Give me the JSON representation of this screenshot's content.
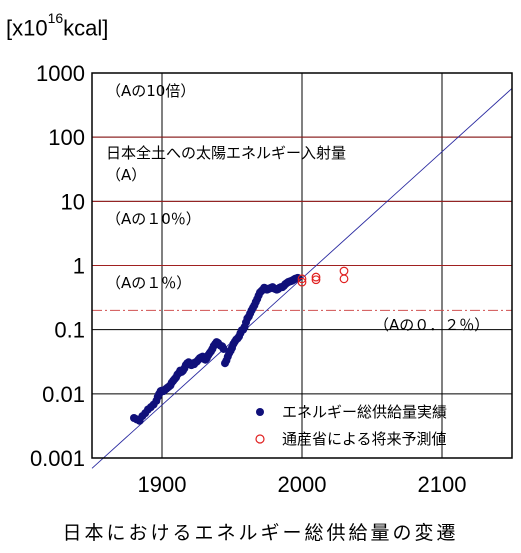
{
  "chart_data": {
    "type": "scatter",
    "unit_label_prefix": "[x10",
    "unit_label_exp": "16",
    "unit_label_suffix": "kcal]",
    "caption": "日本におけるエネルギー総供給量の変遷",
    "xlim": [
      1850,
      2150
    ],
    "ylim": [
      0.001,
      1000
    ],
    "y_scale": "log",
    "x_ticks": [
      "1900",
      "2000",
      "2100"
    ],
    "y_ticks": [
      "0.001",
      "0.01",
      "0.1",
      "1",
      "10",
      "100",
      "1000"
    ],
    "grid": true,
    "legend_position": "bottom-right",
    "annotations": {
      "a10x": "（Aの10倍）",
      "a_line1": "日本全土への太陽エネルギー入射量",
      "a_line2": "（A）",
      "a10pct": "（Aの１0％）",
      "a1pct": "（Aの１％）",
      "a02pct": "（Aの０．２％）"
    },
    "reference_lines": [
      {
        "y": 1000,
        "style": "dashed"
      },
      {
        "y": 100,
        "style": "solid"
      },
      {
        "y": 10,
        "style": "solid"
      },
      {
        "y": 1,
        "style": "solid"
      },
      {
        "y": 0.2,
        "style": "dashdot"
      }
    ],
    "trend_line": {
      "x": [
        1850,
        2150
      ],
      "y": [
        0.00069,
        575
      ]
    },
    "series": [
      {
        "name": "エネルギー総供給量実績",
        "marker": "filled-circle",
        "color": "#10107a",
        "points": [
          [
            1880,
            0.0042
          ],
          [
            1882,
            0.004
          ],
          [
            1884,
            0.0038
          ],
          [
            1886,
            0.0045
          ],
          [
            1888,
            0.005
          ],
          [
            1890,
            0.0057
          ],
          [
            1892,
            0.0062
          ],
          [
            1894,
            0.0068
          ],
          [
            1896,
            0.0078
          ],
          [
            1897,
            0.009
          ],
          [
            1898,
            0.01
          ],
          [
            1899,
            0.011
          ],
          [
            1900,
            0.0112
          ],
          [
            1901,
            0.011
          ],
          [
            1902,
            0.0115
          ],
          [
            1903,
            0.012
          ],
          [
            1904,
            0.0125
          ],
          [
            1905,
            0.013
          ],
          [
            1906,
            0.0135
          ],
          [
            1907,
            0.015
          ],
          [
            1908,
            0.016
          ],
          [
            1909,
            0.017
          ],
          [
            1910,
            0.018
          ],
          [
            1911,
            0.02
          ],
          [
            1912,
            0.021
          ],
          [
            1913,
            0.023
          ],
          [
            1914,
            0.022
          ],
          [
            1915,
            0.023
          ],
          [
            1916,
            0.025
          ],
          [
            1917,
            0.028
          ],
          [
            1918,
            0.03
          ],
          [
            1919,
            0.031
          ],
          [
            1920,
            0.029
          ],
          [
            1921,
            0.028
          ],
          [
            1922,
            0.03
          ],
          [
            1923,
            0.029
          ],
          [
            1924,
            0.031
          ],
          [
            1925,
            0.032
          ],
          [
            1926,
            0.034
          ],
          [
            1927,
            0.036
          ],
          [
            1928,
            0.037
          ],
          [
            1929,
            0.038
          ],
          [
            1930,
            0.035
          ],
          [
            1931,
            0.034
          ],
          [
            1932,
            0.036
          ],
          [
            1933,
            0.04
          ],
          [
            1934,
            0.043
          ],
          [
            1935,
            0.046
          ],
          [
            1936,
            0.05
          ],
          [
            1937,
            0.056
          ],
          [
            1938,
            0.06
          ],
          [
            1939,
            0.064
          ],
          [
            1940,
            0.062
          ],
          [
            1941,
            0.058
          ],
          [
            1942,
            0.056
          ],
          [
            1943,
            0.055
          ],
          [
            1944,
            0.05
          ],
          [
            1945,
            0.03
          ],
          [
            1946,
            0.033
          ],
          [
            1947,
            0.038
          ],
          [
            1948,
            0.043
          ],
          [
            1949,
            0.047
          ],
          [
            1950,
            0.052
          ],
          [
            1951,
            0.06
          ],
          [
            1952,
            0.065
          ],
          [
            1953,
            0.07
          ],
          [
            1954,
            0.073
          ],
          [
            1955,
            0.078
          ],
          [
            1956,
            0.088
          ],
          [
            1957,
            0.098
          ],
          [
            1958,
            0.1
          ],
          [
            1959,
            0.11
          ],
          [
            1960,
            0.13
          ],
          [
            1961,
            0.15
          ],
          [
            1962,
            0.16
          ],
          [
            1963,
            0.18
          ],
          [
            1964,
            0.2
          ],
          [
            1965,
            0.22
          ],
          [
            1966,
            0.24
          ],
          [
            1967,
            0.27
          ],
          [
            1968,
            0.3
          ],
          [
            1969,
            0.34
          ],
          [
            1970,
            0.38
          ],
          [
            1971,
            0.4
          ],
          [
            1972,
            0.42
          ],
          [
            1973,
            0.45
          ],
          [
            1974,
            0.44
          ],
          [
            1975,
            0.42
          ],
          [
            1976,
            0.43
          ],
          [
            1977,
            0.44
          ],
          [
            1978,
            0.45
          ],
          [
            1979,
            0.46
          ],
          [
            1980,
            0.44
          ],
          [
            1981,
            0.43
          ],
          [
            1982,
            0.42
          ],
          [
            1983,
            0.43
          ],
          [
            1984,
            0.45
          ],
          [
            1985,
            0.46
          ],
          [
            1986,
            0.46
          ],
          [
            1987,
            0.48
          ],
          [
            1988,
            0.51
          ],
          [
            1989,
            0.53
          ],
          [
            1990,
            0.55
          ],
          [
            1991,
            0.56
          ],
          [
            1992,
            0.57
          ],
          [
            1993,
            0.58
          ],
          [
            1994,
            0.6
          ],
          [
            1995,
            0.62
          ],
          [
            1996,
            0.63
          ],
          [
            1997,
            0.64
          ]
        ]
      },
      {
        "name": "通産省による将来予測値",
        "marker": "open-circle",
        "color": "#e02020",
        "points": [
          [
            2000,
            0.62
          ],
          [
            2000,
            0.55
          ],
          [
            2010,
            0.66
          ],
          [
            2010,
            0.6
          ],
          [
            2030,
            0.82
          ],
          [
            2030,
            0.62
          ]
        ]
      }
    ]
  }
}
